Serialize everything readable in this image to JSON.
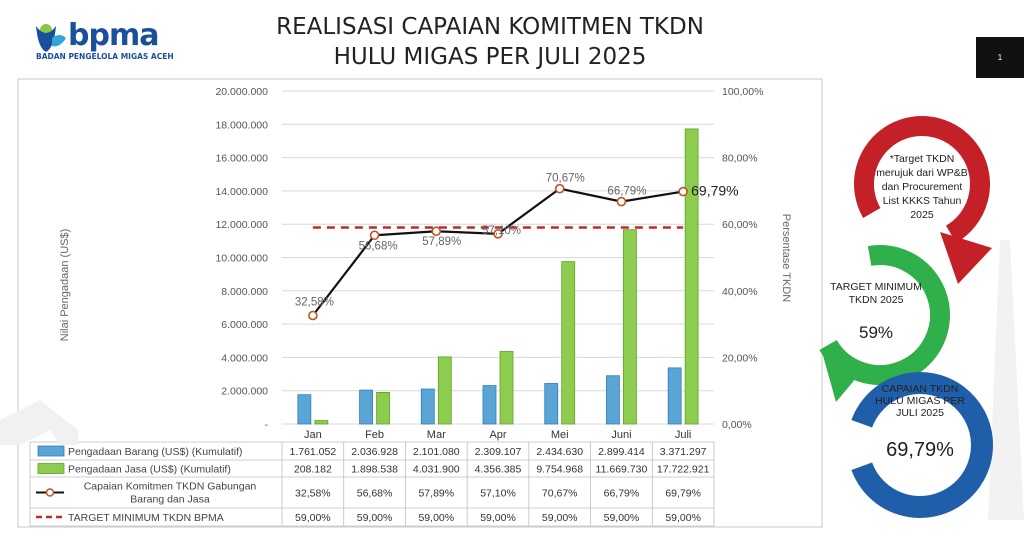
{
  "logo": {
    "brand": "bpma",
    "subtitle": "BADAN PENGELOLA MIGAS ACEH"
  },
  "page": {
    "title_line1": "REALISASI CAPAIAN KOMITMEN TKDN",
    "title_line2": "HULU MIGAS PER JULI 2025",
    "page_number": "1"
  },
  "colors": {
    "barang": "#5aa5d6",
    "jasa": "#8dcc4f",
    "line": "#111111",
    "target": "#c0282b",
    "ring_red": "#c42027",
    "ring_green": "#2fb04a",
    "ring_blue": "#1f5ea8"
  },
  "chart_data": {
    "type": "bar",
    "categories": [
      "Jan",
      "Feb",
      "Mar",
      "Apr",
      "Mei",
      "Juni",
      "Juli"
    ],
    "ylabel": "Nilai Pengadaan (US$)",
    "y2label": "Persentase TKDN",
    "ylim": [
      0,
      20000000
    ],
    "y2lim": [
      0,
      100
    ],
    "y_ticks": [
      "20.000.000",
      "18.000.000",
      "16.000.000",
      "14.000.000",
      "12.000.000",
      "10.000.000",
      "8.000.000",
      "6.000.000",
      "4.000.000",
      "2.000.000",
      "-"
    ],
    "y2_ticks": [
      "100,00%",
      "80,00%",
      "60,00%",
      "40,00%",
      "20,00%",
      "0,00%"
    ],
    "series": [
      {
        "name": "Pengadaan Barang (US$) (Kumulatif)",
        "kind": "bar",
        "values": [
          1761052,
          2036928,
          2101080,
          2309107,
          2434630,
          2899414,
          3371297
        ],
        "table_values": [
          "1.761.052",
          "2.036.928",
          "2.101.080",
          "2.309.107",
          "2.434.630",
          "2.899.414",
          "3.371.297"
        ]
      },
      {
        "name": "Pengadaan Jasa (US$) (Kumulatif)",
        "kind": "bar",
        "values": [
          208182,
          1898538,
          4031900,
          4356385,
          9754968,
          11669730,
          17722921
        ],
        "table_values": [
          "208.182",
          "1.898.538",
          "4.031.900",
          "4.356.385",
          "9.754.968",
          "11.669.730",
          "17.722.921"
        ]
      },
      {
        "name": "Capaian Komitmen TKDN Gabungan Barang dan Jasa",
        "name_lines": [
          "Capaian Komitmen TKDN Gabungan",
          "Barang dan Jasa"
        ],
        "kind": "line",
        "axis": "right",
        "values": [
          32.58,
          56.68,
          57.89,
          57.1,
          70.67,
          66.79,
          69.79
        ],
        "point_labels": [
          "32,58%",
          "56,68%",
          "57,89%",
          "57,10%",
          "70,67%",
          "66,79%",
          "69,79%"
        ],
        "table_values": [
          "32,58%",
          "56,68%",
          "57,89%",
          "57,10%",
          "70,67%",
          "66,79%",
          "69,79%"
        ]
      },
      {
        "name": "TARGET MINIMUM TKDN BPMA",
        "kind": "line-dashed",
        "axis": "right",
        "values": [
          59,
          59,
          59,
          59,
          59,
          59,
          59
        ],
        "table_values": [
          "59,00%",
          "59,00%",
          "59,00%",
          "59,00%",
          "59,00%",
          "59,00%",
          "59,00%"
        ]
      }
    ]
  },
  "notes": {
    "red": {
      "lines": [
        "*Target TKDN",
        "merujuk dari WP&B",
        "dan Procurement",
        "List KKKS Tahun",
        "2025"
      ]
    },
    "green": {
      "lines": [
        "TARGET MINIMUM",
        "TKDN 2025"
      ],
      "value": "59%"
    },
    "blue": {
      "lines": [
        "CAPAIAN TKDN",
        "HULU MIGAS PER",
        "JULI 2025"
      ],
      "value": "69,79%"
    }
  }
}
